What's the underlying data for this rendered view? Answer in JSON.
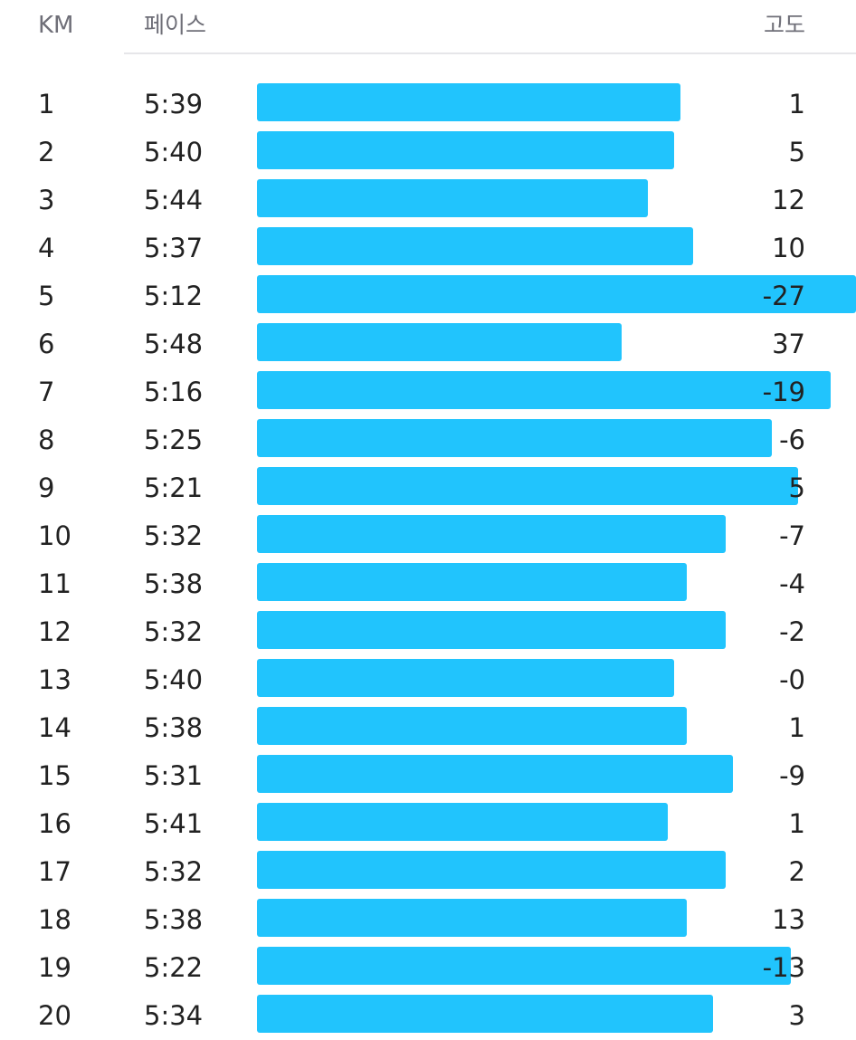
{
  "header": {
    "km_label": "KM",
    "pace_label": "페이스",
    "elevation_label": "고도"
  },
  "colors": {
    "bar": "#21c4fd",
    "header_text": "#6f6f78",
    "row_text": "#222222",
    "divider": "#e6e6e9"
  },
  "splits": [
    {
      "km": "1",
      "pace": "5:39",
      "elevation": "1",
      "pace_seconds": 339
    },
    {
      "km": "2",
      "pace": "5:40",
      "elevation": "5",
      "pace_seconds": 340
    },
    {
      "km": "3",
      "pace": "5:44",
      "elevation": "12",
      "pace_seconds": 344
    },
    {
      "km": "4",
      "pace": "5:37",
      "elevation": "10",
      "pace_seconds": 337
    },
    {
      "km": "5",
      "pace": "5:12",
      "elevation": "-27",
      "pace_seconds": 312
    },
    {
      "km": "6",
      "pace": "5:48",
      "elevation": "37",
      "pace_seconds": 348
    },
    {
      "km": "7",
      "pace": "5:16",
      "elevation": "-19",
      "pace_seconds": 316
    },
    {
      "km": "8",
      "pace": "5:25",
      "elevation": "-6",
      "pace_seconds": 325
    },
    {
      "km": "9",
      "pace": "5:21",
      "elevation": "5",
      "pace_seconds": 321
    },
    {
      "km": "10",
      "pace": "5:32",
      "elevation": "-7",
      "pace_seconds": 332
    },
    {
      "km": "11",
      "pace": "5:38",
      "elevation": "-4",
      "pace_seconds": 338
    },
    {
      "km": "12",
      "pace": "5:32",
      "elevation": "-2",
      "pace_seconds": 332
    },
    {
      "km": "13",
      "pace": "5:40",
      "elevation": "-0",
      "pace_seconds": 340
    },
    {
      "km": "14",
      "pace": "5:38",
      "elevation": "1",
      "pace_seconds": 338
    },
    {
      "km": "15",
      "pace": "5:31",
      "elevation": "-9",
      "pace_seconds": 331
    },
    {
      "km": "16",
      "pace": "5:41",
      "elevation": "1",
      "pace_seconds": 341
    },
    {
      "km": "17",
      "pace": "5:32",
      "elevation": "2",
      "pace_seconds": 332
    },
    {
      "km": "18",
      "pace": "5:38",
      "elevation": "13",
      "pace_seconds": 338
    },
    {
      "km": "19",
      "pace": "5:22",
      "elevation": "-13",
      "pace_seconds": 322
    },
    {
      "km": "20",
      "pace": "5:34",
      "elevation": "3",
      "pace_seconds": 334
    }
  ]
}
